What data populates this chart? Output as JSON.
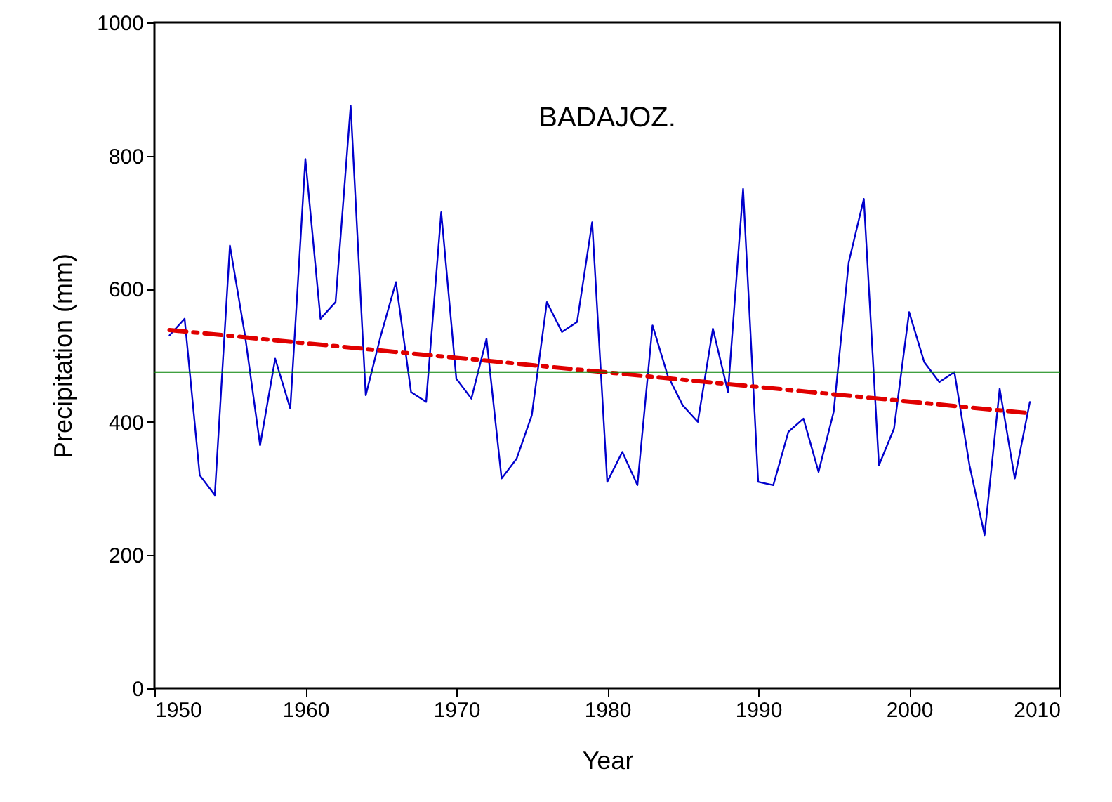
{
  "chart_data": {
    "type": "line",
    "title": "BADAJOZ.",
    "xlabel": "Year",
    "ylabel": "Precipitation (mm)",
    "x": [
      1951,
      1952,
      1953,
      1954,
      1955,
      1956,
      1957,
      1958,
      1959,
      1960,
      1961,
      1962,
      1963,
      1964,
      1965,
      1966,
      1967,
      1968,
      1969,
      1970,
      1971,
      1972,
      1973,
      1974,
      1975,
      1976,
      1977,
      1978,
      1979,
      1980,
      1981,
      1982,
      1983,
      1984,
      1985,
      1986,
      1987,
      1988,
      1989,
      1990,
      1991,
      1992,
      1993,
      1994,
      1995,
      1996,
      1997,
      1998,
      1999,
      2000,
      2001,
      2002,
      2003,
      2004,
      2005,
      2006,
      2007,
      2008
    ],
    "series": [
      {
        "color": "#0000cc",
        "values": [
          530,
          555,
          320,
          290,
          665,
          530,
          365,
          495,
          420,
          795,
          555,
          580,
          875,
          440,
          530,
          610,
          445,
          430,
          715,
          465,
          435,
          525,
          315,
          345,
          410,
          580,
          535,
          550,
          700,
          310,
          355,
          305,
          545,
          470,
          425,
          400,
          540,
          445,
          750,
          310,
          305,
          385,
          405,
          325,
          415,
          640,
          735,
          335,
          390,
          565,
          490,
          460,
          475,
          335,
          230,
          450,
          315,
          430
        ]
      },
      {
        "type": "line",
        "color": "#e00000",
        "line_style": "dashed",
        "x": [
          1951,
          2008
        ],
        "values": [
          538,
          413
        ]
      }
    ],
    "ref_lines": [
      {
        "axis": "y",
        "value": 475,
        "color": "#008000"
      }
    ],
    "xlim": [
      1950,
      2010
    ],
    "xticks": [
      1950,
      1960,
      1970,
      1980,
      1990,
      2000,
      2010
    ],
    "ylim": [
      0,
      1000
    ],
    "yticks": [
      0,
      200,
      400,
      600,
      800,
      1000
    ],
    "grid": false,
    "marker": "none"
  }
}
